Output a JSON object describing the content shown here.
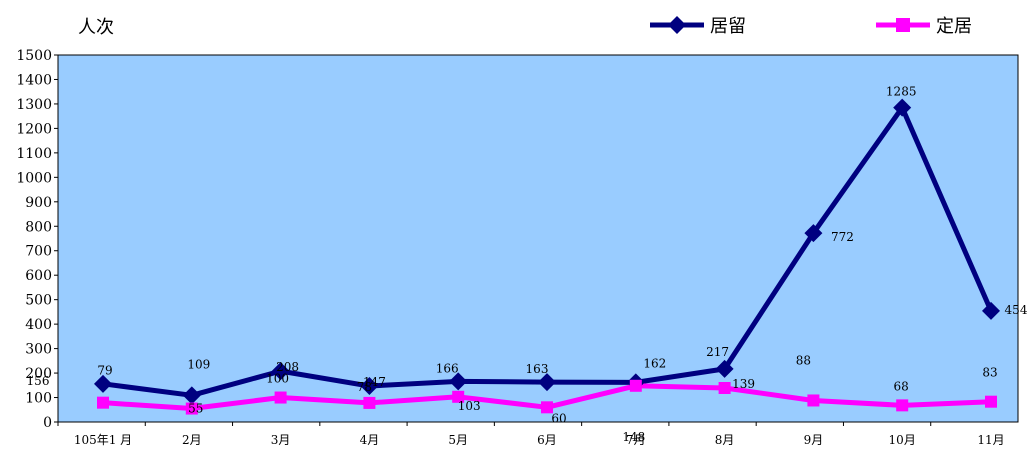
{
  "chart_data": {
    "type": "line",
    "ylabel": "人次",
    "categories": [
      "105年1 月",
      "2月",
      "3月",
      "4月",
      "5月",
      "6月",
      "7月",
      "8月",
      "9月",
      "10月",
      "11月"
    ],
    "ylim": [
      0,
      1500
    ],
    "yticks": [
      0,
      100,
      200,
      300,
      400,
      500,
      600,
      700,
      800,
      900,
      1000,
      1100,
      1200,
      1300,
      1400,
      1500
    ],
    "legend_position": "top-right",
    "series": [
      {
        "name": "居留",
        "color": "#000080",
        "marker": "diamond",
        "values": [
          156,
          109,
          208,
          147,
          166,
          163,
          162,
          217,
          772,
          1285,
          454
        ]
      },
      {
        "name": "定居",
        "color": "#ff00ff",
        "marker": "square",
        "values": [
          79,
          55,
          100,
          78,
          103,
          60,
          148,
          139,
          88,
          68,
          83
        ]
      }
    ],
    "plot_background": "#99ccff"
  }
}
